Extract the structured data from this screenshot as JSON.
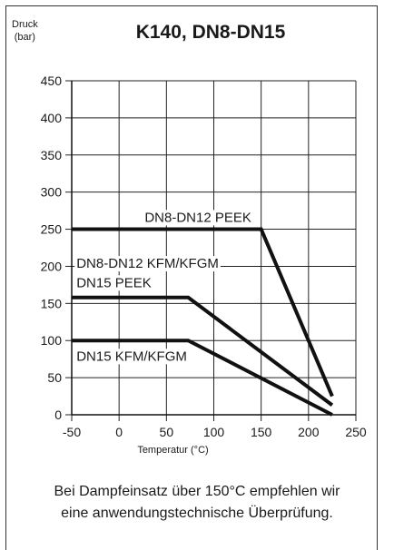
{
  "chart_data": {
    "type": "line",
    "title": "K140, DN8-DN15",
    "ylabel": [
      "Druck",
      "(bar)"
    ],
    "xlabel": "Temperatur (°C)",
    "xlim": [
      -50,
      250
    ],
    "ylim": [
      0,
      450
    ],
    "xticks": [
      -50,
      0,
      50,
      100,
      150,
      200,
      250
    ],
    "yticks": [
      0,
      50,
      100,
      150,
      200,
      250,
      300,
      350,
      400,
      450
    ],
    "grid": true,
    "line_color": "#111111",
    "series": [
      {
        "name": "DN8-DN12 PEEK",
        "x": [
          -50,
          150,
          225
        ],
        "y": [
          250,
          250,
          25
        ]
      },
      {
        "name": "DN8-DN12 KFM/KFGM DN15 PEEK",
        "x": [
          -50,
          73,
          225
        ],
        "y": [
          158,
          158,
          13
        ]
      },
      {
        "name": "DN15 KFM/KFGM",
        "x": [
          -50,
          73,
          225
        ],
        "y": [
          100,
          100,
          0
        ]
      }
    ],
    "annotations": [
      {
        "text": "DN8-DN12 PEEK",
        "x": 27,
        "y": 260
      },
      {
        "text": "DN8-DN12 KFM/KFGM",
        "x": -45,
        "y": 198
      },
      {
        "text": "DN15 PEEK",
        "x": -45,
        "y": 172
      },
      {
        "text": "DN15 KFM/KFGM",
        "x": -45,
        "y": 73
      }
    ]
  },
  "footnote": [
    "Bei Dampfeinsatz über 150°C empfehlen wir",
    "eine anwendungstechnische Überprüfung."
  ]
}
